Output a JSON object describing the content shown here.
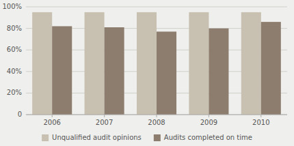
{
  "chart_data": {
    "type": "bar",
    "categories": [
      "2006",
      "2007",
      "2008",
      "2009",
      "2010"
    ],
    "series": [
      {
        "name": "Unqualified audit opinions",
        "color": "#c8c0b0",
        "values": [
          95,
          95,
          95,
          95,
          95
        ]
      },
      {
        "name": "Audits completed on time",
        "color": "#8c7d6e",
        "values": [
          82,
          81,
          77,
          80,
          86
        ]
      }
    ],
    "ylim": [
      0,
      100
    ],
    "yticks": [
      0,
      {
        "value": 20,
        "label": "20%"
      },
      {
        "value": 40,
        "label": "40%"
      },
      {
        "value": 60,
        "label": "60%"
      },
      {
        "value": 80,
        "label": "80%"
      },
      {
        "value": 100,
        "label": "100%"
      }
    ],
    "grid": true,
    "legend": "bottom"
  }
}
